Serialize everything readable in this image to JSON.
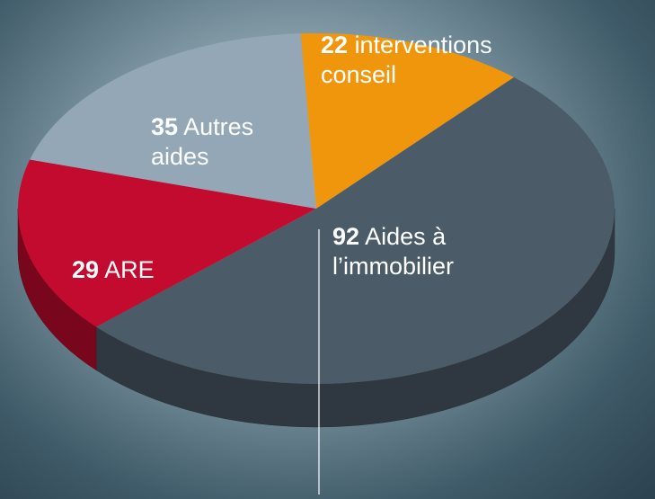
{
  "chart_data": {
    "type": "pie",
    "categories": [
      "interventions conseil",
      "Aides à l’immobilier",
      "ARE",
      "Autres aides"
    ],
    "values": [
      22,
      92,
      29,
      35
    ],
    "colors": [
      "#f0960c",
      "#4b5b67",
      "#c20b2e",
      "#93a7b6"
    ]
  }
}
